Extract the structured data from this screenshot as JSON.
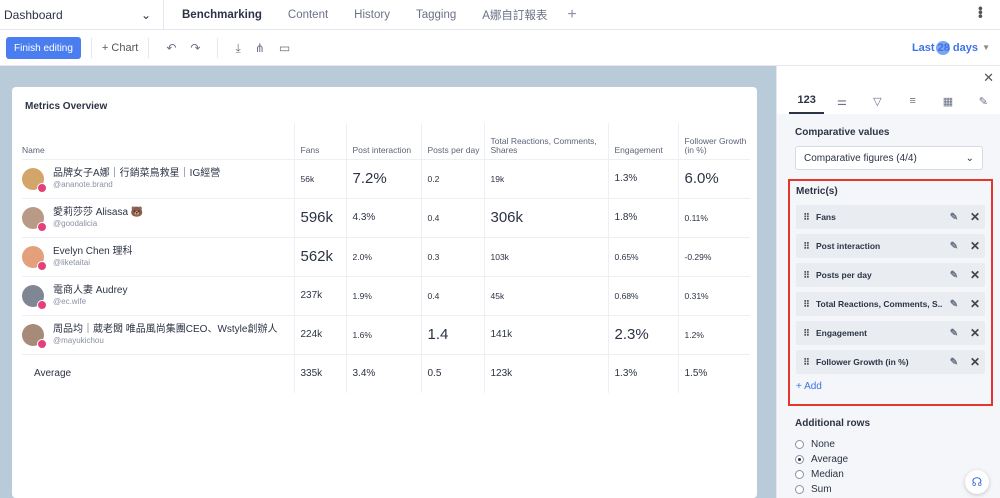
{
  "topbar": {
    "dashboard_label": "Dashboard",
    "tabs": [
      {
        "label": "Benchmarking",
        "active": true
      },
      {
        "label": "Content",
        "active": false
      },
      {
        "label": "History",
        "active": false
      },
      {
        "label": "Tagging",
        "active": false
      },
      {
        "label": "A娜自訂報表",
        "active": false
      }
    ],
    "add_tab": "+"
  },
  "toolbar": {
    "finish_editing": "Finish editing",
    "add_chart": "+ Chart",
    "date_range": "Last 28 days"
  },
  "widget": {
    "title": "Metrics Overview",
    "headers": [
      "Name",
      "Fans",
      "Post interaction",
      "Posts per day",
      "Total Reactions, Comments, Shares",
      "Engagement",
      "Follower Growth (in %)"
    ],
    "rows": [
      {
        "name": "品牌女子A娜｜行銷菜鳥救星｜IG經營",
        "handle": "@ananote.brand",
        "fans": "56k",
        "post_interaction": "7.2%",
        "posts_per_day": "0.2",
        "reactions": "19k",
        "engagement": "1.3%",
        "growth": "6.0%"
      },
      {
        "name": "愛莉莎莎 Alisasa 🐻",
        "handle": "@goodalicia",
        "fans": "596k",
        "post_interaction": "4.3%",
        "posts_per_day": "0.4",
        "reactions": "306k",
        "engagement": "1.8%",
        "growth": "0.11%"
      },
      {
        "name": "Evelyn Chen 理科",
        "handle": "@liketaitai",
        "fans": "562k",
        "post_interaction": "2.0%",
        "posts_per_day": "0.3",
        "reactions": "103k",
        "engagement": "0.65%",
        "growth": "-0.29%"
      },
      {
        "name": "電商人妻 Audrey",
        "handle": "@ec.wife",
        "fans": "237k",
        "post_interaction": "1.9%",
        "posts_per_day": "0.4",
        "reactions": "45k",
        "engagement": "0.68%",
        "growth": "0.31%"
      },
      {
        "name": "周品均｜葳老闆 唯品風尚集團CEO、Wstyle創辦人",
        "handle": "@mayukichou",
        "fans": "224k",
        "post_interaction": "1.6%",
        "posts_per_day": "1.4",
        "reactions": "141k",
        "engagement": "2.3%",
        "growth": "1.2%"
      }
    ],
    "average": {
      "label": "Average",
      "fans": "335k",
      "post_interaction": "3.4%",
      "posts_per_day": "0.5",
      "reactions": "123k",
      "engagement": "1.3%",
      "growth": "1.5%"
    }
  },
  "panel": {
    "tab_123": "123",
    "comparative_label": "Comparative values",
    "comparative_value": "Comparative figures (4/4)",
    "metrics_label": "Metric(s)",
    "metrics": [
      "Fans",
      "Post interaction",
      "Posts per day",
      "Total Reactions, Comments, S...",
      "Engagement",
      "Follower Growth (in %)"
    ],
    "add_label": "+ Add",
    "additional_label": "Additional rows",
    "options": [
      {
        "label": "None",
        "selected": false
      },
      {
        "label": "Average",
        "selected": true
      },
      {
        "label": "Median",
        "selected": false
      },
      {
        "label": "Sum",
        "selected": false
      }
    ]
  }
}
